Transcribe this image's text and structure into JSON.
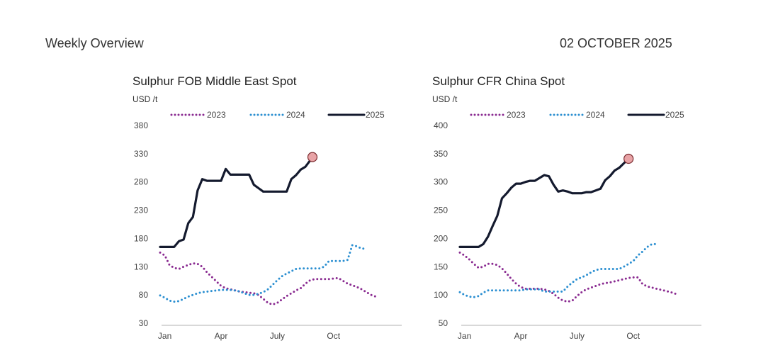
{
  "header": {
    "left_title": "Weekly Overview",
    "date": "02 OCTOBER 2025"
  },
  "chart_data": [
    {
      "type": "line",
      "title": "Sulphur FOB Middle East Spot",
      "ylabel": "USD /t",
      "ylim": [
        30,
        380
      ],
      "y_ticks": [
        30,
        80,
        130,
        180,
        230,
        280,
        330,
        380
      ],
      "x_ticks": [
        "Jan",
        "Apr",
        "July",
        "Oct"
      ],
      "x_domain_weeks": [
        0,
        52
      ],
      "x_tick_weeks": [
        1,
        13,
        25,
        37
      ],
      "legend": [
        "2023",
        "2024",
        "2025"
      ],
      "legend_placement": "top",
      "grid": false,
      "colors": {
        "2023": "#8a2b91",
        "2024": "#2b8fd1",
        "2025": "#141a2e",
        "marker": "#e8a3a6"
      },
      "series": [
        {
          "name": "2023",
          "style": "dotted",
          "points": [
            [
              0,
              155
            ],
            [
              1,
              150
            ],
            [
              2,
              133
            ],
            [
              3,
              128
            ],
            [
              4,
              126
            ],
            [
              5,
              130
            ],
            [
              6,
              133
            ],
            [
              7,
              136
            ],
            [
              8,
              135
            ],
            [
              9,
              130
            ],
            [
              10,
              120
            ],
            [
              11,
              112
            ],
            [
              12,
              104
            ],
            [
              13,
              96
            ],
            [
              14,
              92
            ],
            [
              15,
              90
            ],
            [
              16,
              88
            ],
            [
              17,
              86
            ],
            [
              18,
              85
            ],
            [
              19,
              84
            ],
            [
              20,
              83
            ],
            [
              21,
              80
            ],
            [
              22,
              73
            ],
            [
              23,
              66
            ],
            [
              24,
              63
            ],
            [
              25,
              66
            ],
            [
              26,
              72
            ],
            [
              27,
              78
            ],
            [
              28,
              83
            ],
            [
              29,
              88
            ],
            [
              30,
              92
            ],
            [
              31,
              100
            ],
            [
              32,
              106
            ],
            [
              33,
              108
            ],
            [
              34,
              108
            ],
            [
              35,
              108
            ],
            [
              36,
              108
            ],
            [
              37,
              109
            ],
            [
              38,
              110
            ],
            [
              39,
              105
            ],
            [
              40,
              100
            ],
            [
              41,
              97
            ],
            [
              42,
              94
            ],
            [
              43,
              90
            ],
            [
              44,
              85
            ],
            [
              45,
              80
            ],
            [
              46,
              77
            ]
          ]
        },
        {
          "name": "2024",
          "style": "dotted",
          "points": [
            [
              0,
              79
            ],
            [
              1,
              75
            ],
            [
              2,
              70
            ],
            [
              3,
              68
            ],
            [
              4,
              69
            ],
            [
              5,
              73
            ],
            [
              6,
              77
            ],
            [
              7,
              80
            ],
            [
              8,
              83
            ],
            [
              9,
              85
            ],
            [
              10,
              86
            ],
            [
              11,
              87
            ],
            [
              12,
              88
            ],
            [
              13,
              89
            ],
            [
              14,
              89
            ],
            [
              15,
              89
            ],
            [
              16,
              88
            ],
            [
              17,
              86
            ],
            [
              18,
              83
            ],
            [
              19,
              80
            ],
            [
              20,
              80
            ],
            [
              21,
              82
            ],
            [
              22,
              85
            ],
            [
              23,
              90
            ],
            [
              24,
              98
            ],
            [
              25,
              106
            ],
            [
              26,
              113
            ],
            [
              27,
              118
            ],
            [
              28,
              122
            ],
            [
              29,
              126
            ],
            [
              30,
              127
            ],
            [
              31,
              127
            ],
            [
              32,
              127
            ],
            [
              33,
              127
            ],
            [
              34,
              127
            ],
            [
              35,
              130
            ],
            [
              36,
              140
            ],
            [
              37,
              140
            ],
            [
              38,
              140
            ],
            [
              39,
              140
            ],
            [
              40,
              142
            ],
            [
              41,
              168
            ],
            [
              42,
              166
            ],
            [
              43,
              162
            ],
            [
              44,
              162
            ]
          ]
        },
        {
          "name": "2025",
          "style": "solid",
          "points": [
            [
              0,
              165
            ],
            [
              1,
              165
            ],
            [
              2,
              165
            ],
            [
              3,
              165
            ],
            [
              4,
              175
            ],
            [
              5,
              178
            ],
            [
              6,
              207
            ],
            [
              7,
              218
            ],
            [
              8,
              265
            ],
            [
              9,
              285
            ],
            [
              10,
              282
            ],
            [
              11,
              282
            ],
            [
              12,
              282
            ],
            [
              13,
              282
            ],
            [
              14,
              303
            ],
            [
              15,
              293
            ],
            [
              16,
              293
            ],
            [
              17,
              293
            ],
            [
              18,
              293
            ],
            [
              19,
              293
            ],
            [
              20,
              275
            ],
            [
              21,
              269
            ],
            [
              22,
              263
            ],
            [
              23,
              263
            ],
            [
              24,
              263
            ],
            [
              25,
              263
            ],
            [
              26,
              263
            ],
            [
              27,
              263
            ],
            [
              28,
              285
            ],
            [
              29,
              292
            ],
            [
              30,
              302
            ],
            [
              31,
              307
            ],
            [
              32,
              318
            ],
            [
              32.5,
              324
            ]
          ]
        }
      ],
      "end_marker": {
        "x": 32.5,
        "y": 324
      }
    },
    {
      "type": "line",
      "title": "Sulphur CFR China Spot",
      "ylabel": "USD /t",
      "ylim": [
        50,
        400
      ],
      "y_ticks": [
        50,
        100,
        150,
        200,
        250,
        300,
        350,
        400
      ],
      "x_ticks": [
        "Jan",
        "Apr",
        "July",
        "Oct"
      ],
      "x_domain_weeks": [
        0,
        52
      ],
      "x_tick_weeks": [
        1,
        13,
        25,
        37
      ],
      "legend": [
        "2023",
        "2024",
        "2025"
      ],
      "legend_placement": "top",
      "grid": false,
      "colors": {
        "2023": "#8a2b91",
        "2024": "#2b8fd1",
        "2025": "#141a2e",
        "marker": "#e8a3a6"
      },
      "series": [
        {
          "name": "2023",
          "style": "dotted",
          "points": [
            [
              0,
              175
            ],
            [
              1,
              170
            ],
            [
              2,
              163
            ],
            [
              3,
              155
            ],
            [
              4,
              148
            ],
            [
              5,
              150
            ],
            [
              6,
              155
            ],
            [
              7,
              155
            ],
            [
              8,
              153
            ],
            [
              9,
              147
            ],
            [
              10,
              138
            ],
            [
              11,
              128
            ],
            [
              12,
              120
            ],
            [
              13,
              114
            ],
            [
              14,
              111
            ],
            [
              15,
              111
            ],
            [
              16,
              111
            ],
            [
              17,
              111
            ],
            [
              18,
              110
            ],
            [
              19,
              107
            ],
            [
              20,
              102
            ],
            [
              21,
              95
            ],
            [
              22,
              90
            ],
            [
              23,
              88
            ],
            [
              24,
              90
            ],
            [
              25,
              98
            ],
            [
              26,
              105
            ],
            [
              27,
              110
            ],
            [
              28,
              113
            ],
            [
              29,
              116
            ],
            [
              30,
              119
            ],
            [
              31,
              121
            ],
            [
              32,
              122
            ],
            [
              33,
              124
            ],
            [
              34,
              126
            ],
            [
              35,
              128
            ],
            [
              36,
              130
            ],
            [
              37,
              131
            ],
            [
              38,
              131
            ],
            [
              39,
              119
            ],
            [
              40,
              115
            ],
            [
              41,
              113
            ],
            [
              42,
              111
            ],
            [
              43,
              109
            ],
            [
              44,
              107
            ],
            [
              45,
              105
            ],
            [
              46,
              102
            ]
          ]
        },
        {
          "name": "2024",
          "style": "dotted",
          "points": [
            [
              0,
              105
            ],
            [
              1,
              100
            ],
            [
              2,
              97
            ],
            [
              3,
              96
            ],
            [
              4,
              98
            ],
            [
              5,
              104
            ],
            [
              6,
              108
            ],
            [
              7,
              108
            ],
            [
              8,
              108
            ],
            [
              9,
              108
            ],
            [
              10,
              108
            ],
            [
              11,
              108
            ],
            [
              12,
              108
            ],
            [
              13,
              108
            ],
            [
              14,
              110
            ],
            [
              15,
              110
            ],
            [
              16,
              110
            ],
            [
              17,
              110
            ],
            [
              18,
              106
            ],
            [
              19,
              106
            ],
            [
              20,
              106
            ],
            [
              21,
              106
            ],
            [
              22,
              106
            ],
            [
              23,
              115
            ],
            [
              24,
              122
            ],
            [
              25,
              128
            ],
            [
              26,
              131
            ],
            [
              27,
              135
            ],
            [
              28,
              140
            ],
            [
              29,
              144
            ],
            [
              30,
              146
            ],
            [
              31,
              146
            ],
            [
              32,
              146
            ],
            [
              33,
              146
            ],
            [
              34,
              146
            ],
            [
              35,
              150
            ],
            [
              36,
              155
            ],
            [
              37,
              160
            ],
            [
              38,
              170
            ],
            [
              39,
              177
            ],
            [
              40,
              185
            ],
            [
              41,
              190
            ],
            [
              42,
              190
            ]
          ]
        },
        {
          "name": "2025",
          "style": "solid",
          "points": [
            [
              0,
              185
            ],
            [
              1,
              185
            ],
            [
              2,
              185
            ],
            [
              3,
              185
            ],
            [
              4,
              185
            ],
            [
              5,
              190
            ],
            [
              6,
              203
            ],
            [
              7,
              222
            ],
            [
              8,
              240
            ],
            [
              9,
              271
            ],
            [
              10,
              280
            ],
            [
              11,
              290
            ],
            [
              12,
              297
            ],
            [
              13,
              297
            ],
            [
              14,
              300
            ],
            [
              15,
              302
            ],
            [
              16,
              302
            ],
            [
              17,
              307
            ],
            [
              18,
              312
            ],
            [
              19,
              310
            ],
            [
              20,
              295
            ],
            [
              21,
              283
            ],
            [
              22,
              285
            ],
            [
              23,
              283
            ],
            [
              24,
              280
            ],
            [
              25,
              280
            ],
            [
              26,
              280
            ],
            [
              27,
              282
            ],
            [
              28,
              282
            ],
            [
              29,
              285
            ],
            [
              30,
              288
            ],
            [
              31,
              303
            ],
            [
              32,
              310
            ],
            [
              33,
              320
            ],
            [
              34,
              325
            ],
            [
              35,
              333
            ],
            [
              36,
              341
            ]
          ]
        }
      ],
      "end_marker": {
        "x": 36,
        "y": 341
      }
    }
  ]
}
